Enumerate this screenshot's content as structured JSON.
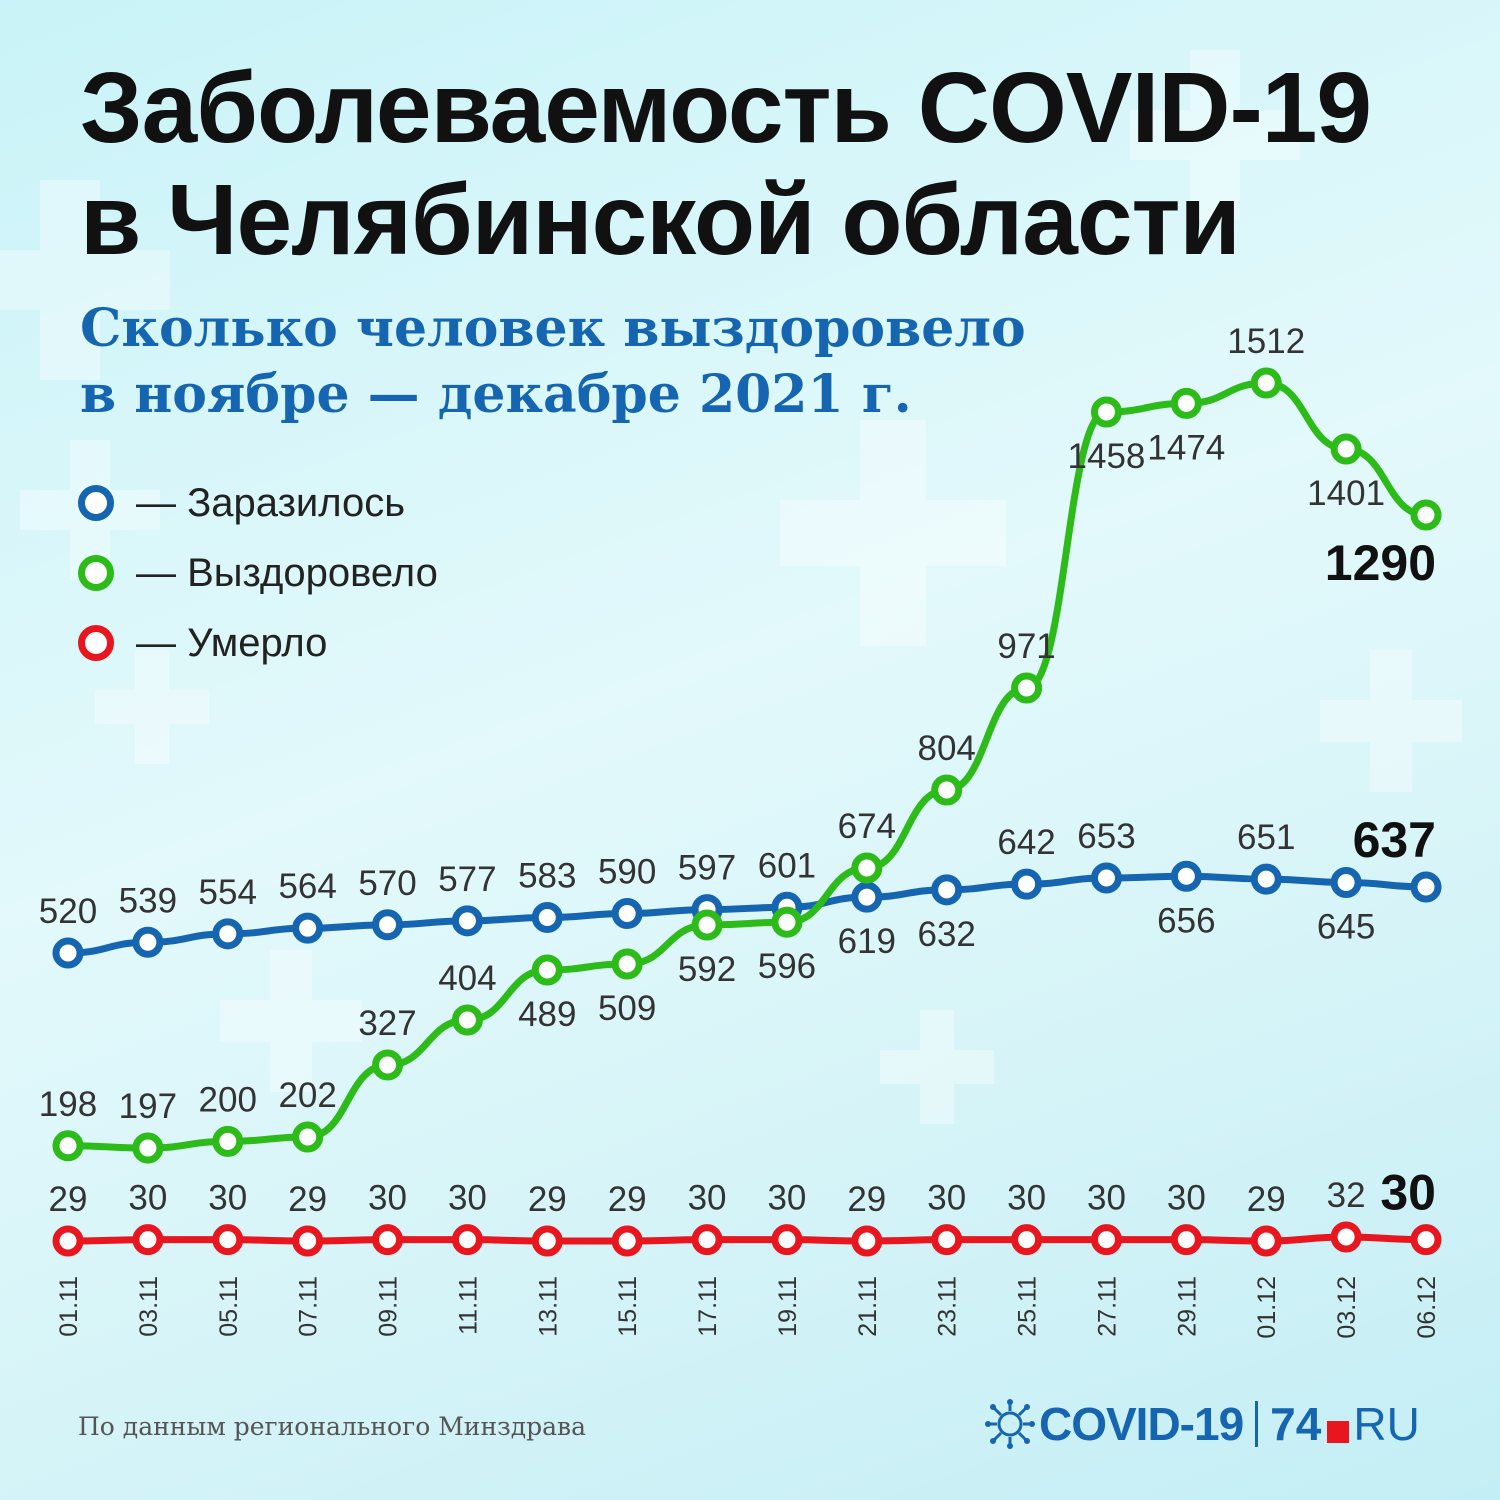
{
  "header": {
    "title_line1": "Заболеваемость COVID-19",
    "title_line2": "в Челябинской области",
    "subtitle_line1": "Сколько человек выздоровело",
    "subtitle_line2": "в ноябре — декабре 2021 г."
  },
  "legend": {
    "items": [
      {
        "label": "— Заразилось",
        "color": "#1565b0"
      },
      {
        "label": "— Выздоровело",
        "color": "#2dbb1a"
      },
      {
        "label": "— Умерло",
        "color": "#e8161e"
      }
    ]
  },
  "chart_data": {
    "type": "line",
    "categories": [
      "01.11",
      "03.11",
      "05.11",
      "07.11",
      "09.11",
      "11.11",
      "13.11",
      "15.11",
      "17.11",
      "19.11",
      "21.11",
      "23.11",
      "25.11",
      "27.11",
      "29.11",
      "01.12",
      "03.12",
      "06.12"
    ],
    "title": "",
    "xlabel": "",
    "ylabel": "",
    "grid": false,
    "legend_position": "top-left",
    "series": [
      {
        "name": "— Заразилось",
        "color": "#1565b0",
        "values": [
          520,
          539,
          554,
          564,
          570,
          577,
          583,
          590,
          597,
          601,
          619,
          632,
          642,
          653,
          656,
          651,
          645,
          637
        ]
      },
      {
        "name": "— Выздоровело",
        "color": "#2dbb1a",
        "values": [
          198,
          197,
          200,
          202,
          327,
          404,
          489,
          509,
          592,
          596,
          674,
          804,
          971,
          1458,
          1474,
          1512,
          1401,
          1290
        ]
      },
      {
        "name": "— Умерло",
        "color": "#e8161e",
        "values": [
          29,
          30,
          30,
          29,
          30,
          30,
          29,
          29,
          30,
          30,
          29,
          30,
          30,
          30,
          30,
          29,
          32,
          30
        ]
      }
    ]
  },
  "footer": {
    "source": "По данным регионального Минздрава",
    "brand_covid": "COVID-19",
    "brand_74": "74",
    "brand_ru": "RU"
  }
}
